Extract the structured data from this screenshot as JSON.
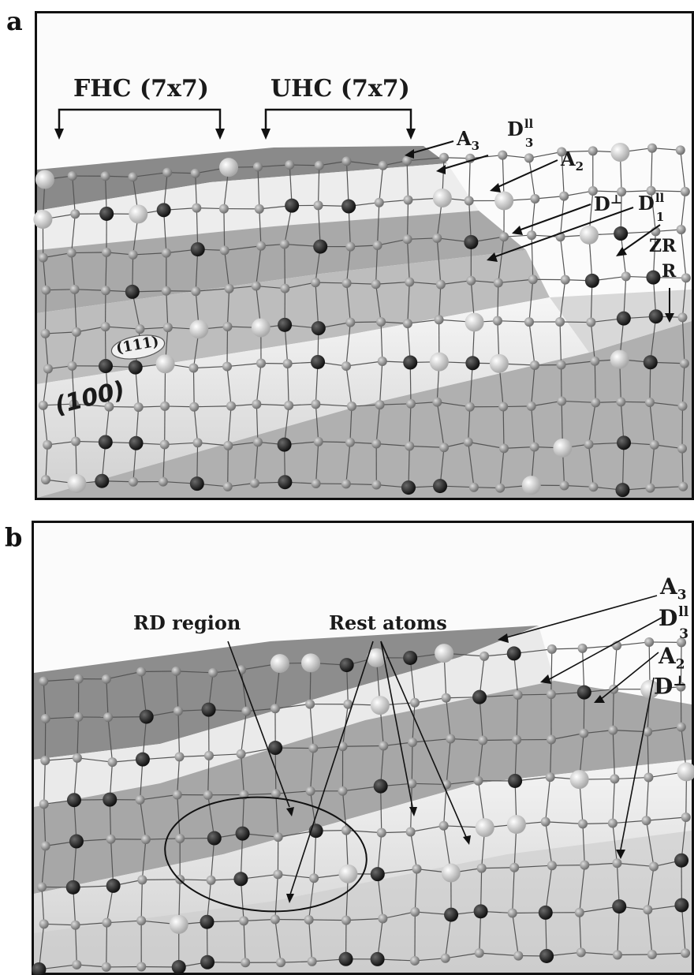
{
  "panel_a": {
    "letter": "a",
    "labels": {
      "fhc": "FHC (7x7)",
      "uhc": "UHC (7x7)",
      "a3": "A",
      "a3_sub": "3",
      "d3par": "D",
      "d3par_sup": "ll",
      "d3par_sub": "3",
      "a2": "A",
      "a2_sub": "2",
      "dperp": "D",
      "dperp_sup": "⊥",
      "d1par": "D",
      "d1par_sup": "ll",
      "d1par_sub": "1",
      "zr": "ZR",
      "r": "R",
      "face111": "(111)",
      "face100": "(100)"
    }
  },
  "panel_b": {
    "letter": "b",
    "labels": {
      "rd_region": "RD region",
      "rest_atoms": "Rest atoms",
      "a3": "A",
      "a3_sub": "3",
      "d3par": "D",
      "d3par_sup": "ll",
      "d3par_sub": "3",
      "a2": "A",
      "a2_sub": "2",
      "dperp": "D",
      "dperp_sup": "⊥"
    }
  },
  "colors": {
    "frame": "#111111",
    "surface_dark": "#8c8c8c",
    "surface_mid": "#b4b4b4",
    "surface_light": "#e4e4e4",
    "atom_dark": "#2a2a2a",
    "atom_grey": "#9a9a9a",
    "atom_light": "#f2f2f2"
  }
}
